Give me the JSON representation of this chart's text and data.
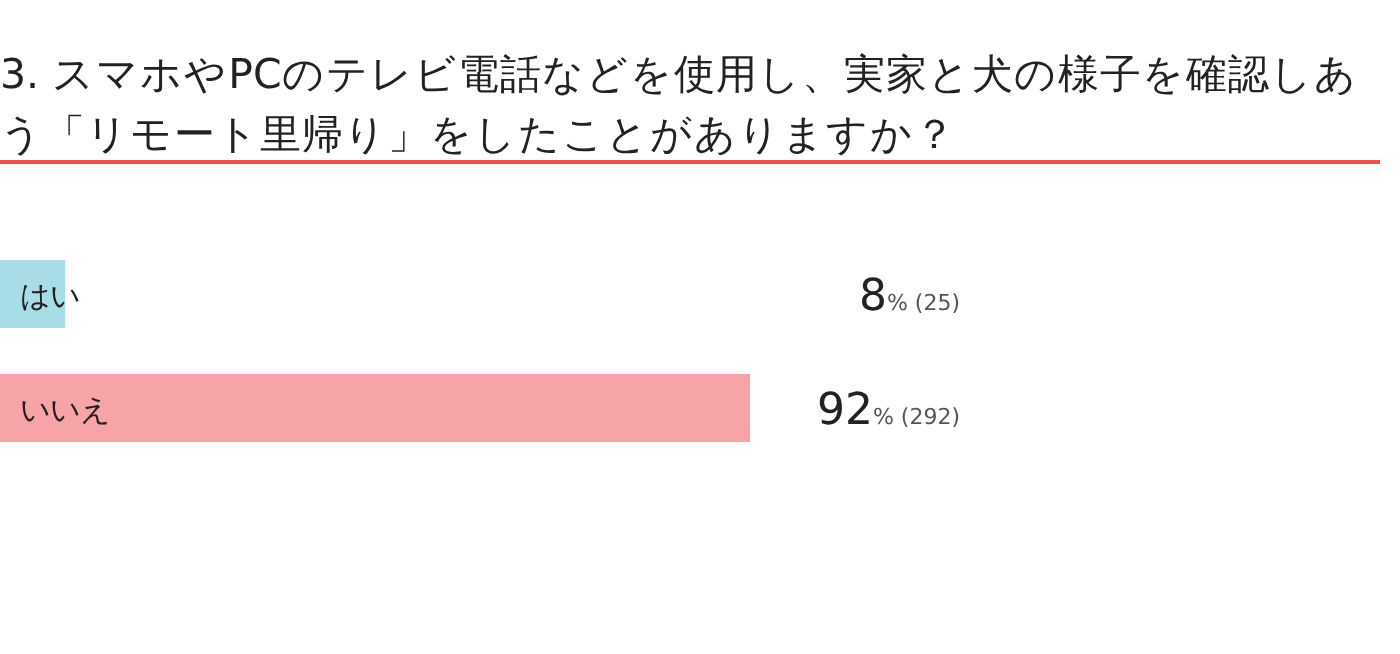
{
  "chart_data": {
    "type": "bar",
    "orientation": "horizontal",
    "title": "3. スマホやPCのテレビ電話などを使用し、実家と犬の様子を確認しあう「リモート里帰り」をしたことがありますか？",
    "categories": [
      "はい",
      "いいえ"
    ],
    "values": [
      8,
      92
    ],
    "colors": [
      "#a8dce6",
      "#f6a4a8"
    ],
    "value_labels": [
      "8% (25)",
      "92% (292)"
    ]
  }
}
